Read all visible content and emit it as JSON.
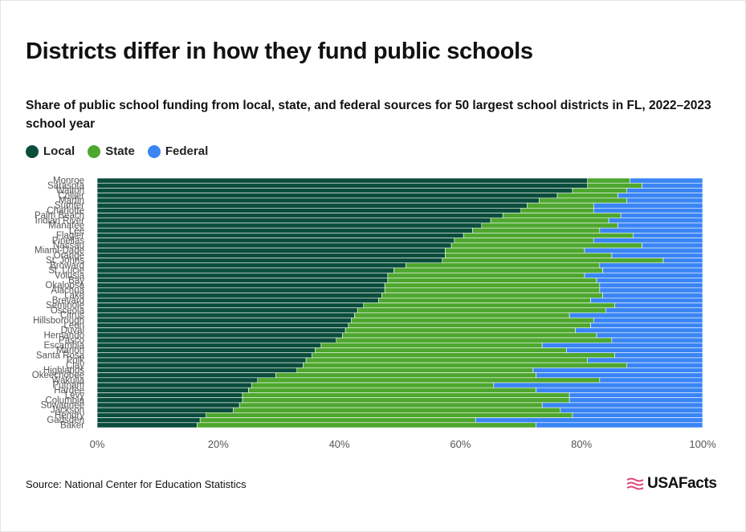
{
  "header": {
    "title": "Districts differ in how they fund public schools",
    "subtitle": "Share of public school funding from local, state, and federal sources for 50 largest school districts in FL, 2022–2023 school year"
  },
  "legend": {
    "items": [
      {
        "label": "Local",
        "color": "#0b4d3c"
      },
      {
        "label": "State",
        "color": "#4ea72e"
      },
      {
        "label": "Federal",
        "color": "#3a85f5"
      }
    ]
  },
  "footer": {
    "source": "Source: National Center for Education Statistics",
    "logo_text": "USAFacts"
  },
  "chart_data": {
    "type": "bar",
    "orientation": "horizontal",
    "stacked": true,
    "xlim": [
      0,
      100
    ],
    "x_ticks": [
      "0%",
      "20%",
      "40%",
      "60%",
      "80%",
      "100%"
    ],
    "grid": false,
    "legend_position": "top-left",
    "categories": [
      "Monroe",
      "Sarasota",
      "Walton",
      "Collier",
      "Martin",
      "Sumter",
      "Charlotte",
      "Palm Beach",
      "Indian River",
      "Manatee",
      "Lee",
      "Flagler",
      "Pinellas",
      "Nassau",
      "Miami-Dade",
      "Orange",
      "St. Johns",
      "Broward",
      "St. Lucie",
      "Volusia",
      "Bay",
      "Okaloosa",
      "Alachua",
      "Lake",
      "Brevard",
      "Seminole",
      "Osceola",
      "Citrus",
      "Hillsborough",
      "Leon",
      "Duval",
      "Hernando",
      "Pasco",
      "Escambia",
      "Marion",
      "Santa Rosa",
      "Polk",
      "Clay",
      "Highlands",
      "Okeechobee",
      "Wakulla",
      "Putnam",
      "Hardee",
      "Levy",
      "Columbia",
      "Suwannee",
      "Jackson",
      "Hendry",
      "Gadsden",
      "Baker"
    ],
    "series": [
      {
        "name": "Local",
        "values": [
          81,
          81,
          78.5,
          76,
          73,
          71,
          70,
          67,
          65,
          63.5,
          62,
          60.5,
          59,
          58.5,
          57.5,
          57.5,
          57,
          51,
          49,
          48,
          48,
          47.5,
          47.5,
          47,
          46.5,
          44,
          43,
          42.5,
          42,
          41.5,
          41,
          40.5,
          39.5,
          37,
          36,
          35.5,
          34.5,
          34,
          33,
          29.5,
          26.5,
          25.5,
          25,
          24,
          24,
          23.5,
          22.5,
          18,
          17,
          16.5
        ]
      },
      {
        "name": "State",
        "values": [
          7,
          9,
          9,
          10,
          14.5,
          11,
          12,
          19.5,
          19.5,
          22.5,
          21,
          28,
          23,
          31.5,
          23,
          27.5,
          36.5,
          32,
          34.5,
          32.5,
          34.5,
          35.5,
          35.5,
          36.5,
          35,
          41.5,
          41,
          35.5,
          40,
          40,
          38,
          42,
          45.5,
          36.5,
          41.5,
          50,
          46.5,
          53.5,
          39,
          43,
          56.5,
          40,
          47.5,
          54,
          54,
          50,
          54,
          60.5,
          45.5,
          56
        ]
      },
      {
        "name": "Federal",
        "values": [
          12,
          10,
          12.5,
          14,
          12.5,
          18,
          18,
          13.5,
          15.5,
          14,
          17,
          11.5,
          18,
          10,
          19.5,
          15,
          6.5,
          17,
          16.5,
          19.5,
          17.5,
          17,
          17,
          16.5,
          18.5,
          14.5,
          16,
          22,
          18,
          18.5,
          21,
          17.5,
          15,
          26.5,
          22.5,
          14.5,
          19,
          12.5,
          28,
          27.5,
          17,
          34.5,
          27.5,
          22,
          22,
          26.5,
          23.5,
          21.5,
          37.5,
          27.5
        ]
      }
    ]
  }
}
